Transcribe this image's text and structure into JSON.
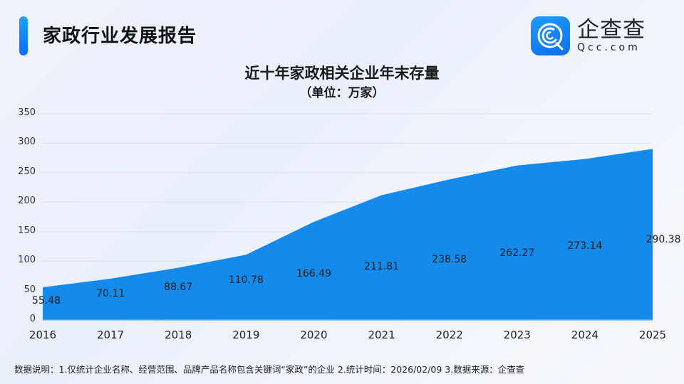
{
  "header": {
    "title": "家政行业发展报告",
    "logo": {
      "name_cn": "企查查",
      "name_en": "Qcc.com",
      "icon": "qcc-logo-icon"
    }
  },
  "colors": {
    "accent": "#0a6cff",
    "area_fill": "#148aea",
    "gridline": "#dcdfe6"
  },
  "chart_data": {
    "type": "area",
    "title": "近十年家政相关企业年末存量",
    "subtitle": "（单位：万家）",
    "xlabel": "",
    "ylabel": "",
    "categories": [
      "2016",
      "2017",
      "2018",
      "2019",
      "2020",
      "2021",
      "2022",
      "2023",
      "2024",
      "2025"
    ],
    "values": [
      55.48,
      70.11,
      88.67,
      110.78,
      166.49,
      211.81,
      238.58,
      262.27,
      273.14,
      290.38
    ],
    "value_labels": [
      "55.48",
      "70.11",
      "88.67",
      "110.78",
      "166.49",
      "211.81",
      "238.58",
      "262.27",
      "273.14",
      "290.38"
    ],
    "ylim": [
      0,
      350
    ],
    "yticks": [
      "350",
      "300",
      "250",
      "200",
      "150",
      "100",
      "50",
      "0"
    ],
    "grid": true,
    "legend": null
  },
  "footer": {
    "note": "数据说明：1.仅统计企业名称、经营范围、品牌产品名称包含关键词“家政”的企业   2.统计时间：2026/02/09    3.数据来源：企查查"
  }
}
